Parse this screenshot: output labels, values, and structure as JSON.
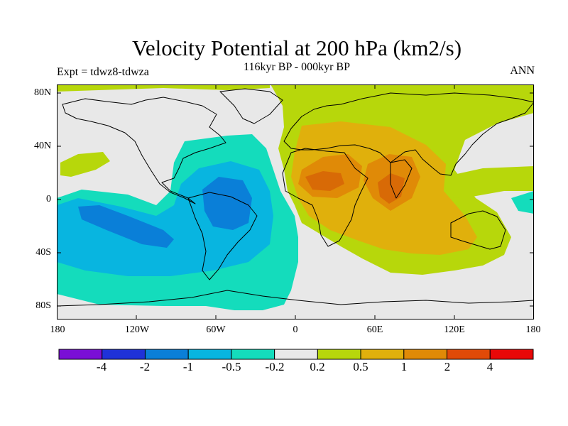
{
  "figure": {
    "title": "Velocity Potential at 200 hPa (km2/s)",
    "subtitle": "116kyr BP - 000kyr BP",
    "left_label": "Expt = tdwz8-tdwza",
    "right_label": "ANN"
  },
  "axes": {
    "y_ticks": [
      "80N",
      "40N",
      "0",
      "40S",
      "80S"
    ],
    "x_ticks": [
      "180",
      "120W",
      "60W",
      "0",
      "60E",
      "120E",
      "180"
    ]
  },
  "colorbar": {
    "labels": [
      "-4",
      "-2",
      "-1",
      "-0.5",
      "-0.2",
      "0.2",
      "0.5",
      "1",
      "2",
      "4"
    ],
    "colors": [
      "#7a0fd6",
      "#1f32d8",
      "#0a7fd8",
      "#08b5e0",
      "#14dcbc",
      "#e8e8e8",
      "#b7d70b",
      "#e0b00c",
      "#e08a07",
      "#e04a08",
      "#e80808"
    ]
  },
  "chart_data": {
    "type": "filled-contour-map",
    "title": "Velocity Potential at 200 hPa (km2/s)",
    "subtitle": "116kyr BP - 000kyr BP",
    "projection": "cylindrical equidistant",
    "lon_range": [
      -180,
      180
    ],
    "lat_range": [
      -90,
      90
    ],
    "contour_levels": [
      -4,
      -2,
      -1,
      -0.5,
      -0.2,
      0.2,
      0.5,
      1,
      2,
      4
    ],
    "features": [
      {
        "label": "Pacific/South America negative anomaly",
        "min_level": "-2 to -1",
        "center_lon": -60,
        "center_lat": -5
      },
      {
        "label": "Africa/Indian Ocean positive anomaly",
        "max_level": "1 to 2",
        "center_lon": 20,
        "center_lat": 12
      },
      {
        "label": "Indian subcontinent positive anomaly",
        "max_level": "1 to 2",
        "center_lon": 75,
        "center_lat": 10
      }
    ]
  }
}
